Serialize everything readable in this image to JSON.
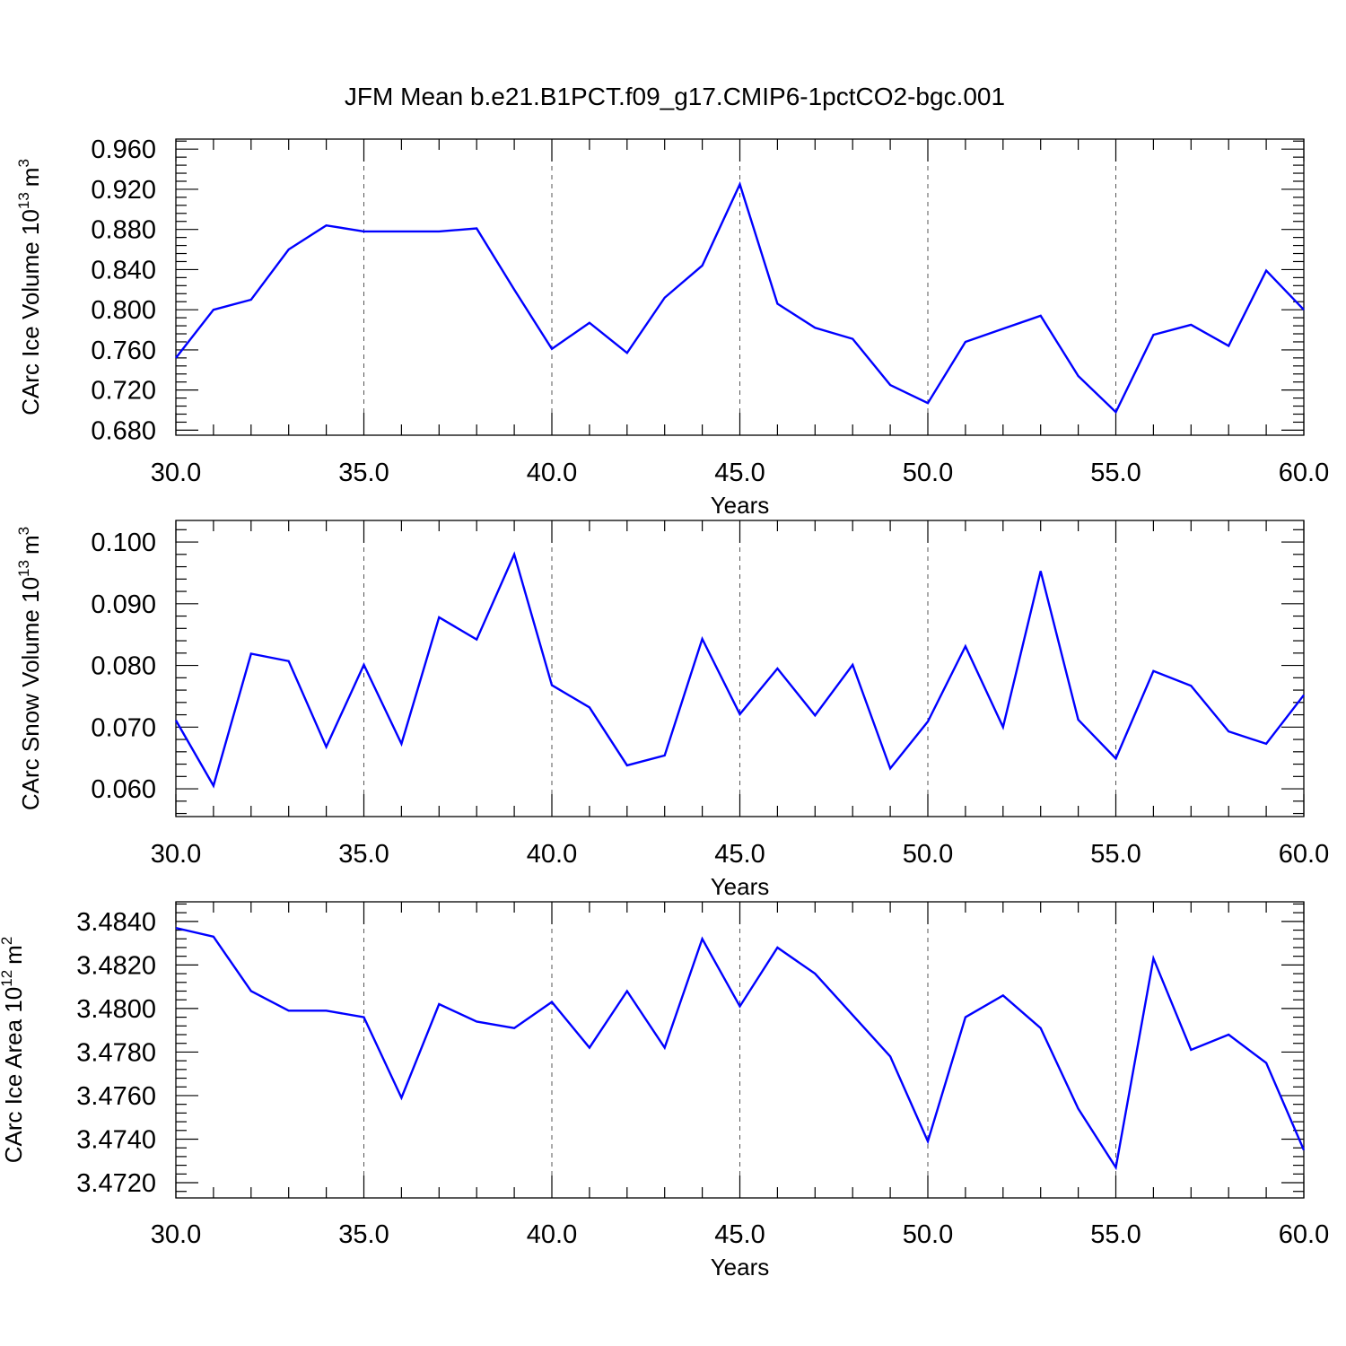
{
  "title": "JFM Mean b.e21.B1PCT.f09_g17.CMIP6-1pctCO2-bgc.001",
  "line_color": "#0000ff",
  "chart_data": [
    {
      "type": "line",
      "ylabel_main": "CArc Ice Volume 10",
      "ylabel_exp": "13",
      "ylabel_unit": "m",
      "ylabel_unit_exp": "3",
      "xlabel": "Years",
      "xlim": [
        30,
        60
      ],
      "ylim": [
        0.675,
        0.97
      ],
      "x_ticks": [
        30,
        35,
        40,
        45,
        50,
        55,
        60
      ],
      "x_tick_labels": [
        "30.0",
        "35.0",
        "40.0",
        "45.0",
        "50.0",
        "55.0",
        "60.0"
      ],
      "y_ticks": [
        0.68,
        0.72,
        0.76,
        0.8,
        0.84,
        0.88,
        0.92,
        0.96
      ],
      "y_tick_labels": [
        "0.680",
        "0.720",
        "0.760",
        "0.800",
        "0.840",
        "0.880",
        "0.920",
        "0.960"
      ],
      "y_minor_step": 0.008,
      "grid": "dashed vertical at major x ticks",
      "x": [
        30,
        31,
        32,
        33,
        34,
        35,
        36,
        37,
        38,
        39,
        40,
        41,
        42,
        43,
        44,
        45,
        46,
        47,
        48,
        49,
        50,
        51,
        52,
        53,
        54,
        55,
        56,
        57,
        58,
        59,
        60
      ],
      "values": [
        0.752,
        0.8,
        0.81,
        0.86,
        0.884,
        0.878,
        0.878,
        0.878,
        0.881,
        0.82,
        0.761,
        0.787,
        0.757,
        0.812,
        0.844,
        0.925,
        0.806,
        0.782,
        0.771,
        0.725,
        0.707,
        0.768,
        0.781,
        0.794,
        0.734,
        0.698,
        0.775,
        0.785,
        0.764,
        0.839,
        0.8
      ]
    },
    {
      "type": "line",
      "ylabel_main": "CArc Snow Volume 10",
      "ylabel_exp": "13",
      "ylabel_unit": "m",
      "ylabel_unit_exp": "3",
      "xlabel": "Years",
      "xlim": [
        30,
        60
      ],
      "ylim": [
        0.0555,
        0.1035
      ],
      "x_ticks": [
        30,
        35,
        40,
        45,
        50,
        55,
        60
      ],
      "x_tick_labels": [
        "30.0",
        "35.0",
        "40.0",
        "45.0",
        "50.0",
        "55.0",
        "60.0"
      ],
      "y_ticks": [
        0.06,
        0.07,
        0.08,
        0.09,
        0.1
      ],
      "y_tick_labels": [
        "0.060",
        "0.070",
        "0.080",
        "0.090",
        "0.100"
      ],
      "y_minor_step": 0.002,
      "grid": "dashed vertical at major x ticks",
      "x": [
        30,
        31,
        32,
        33,
        34,
        35,
        36,
        37,
        38,
        39,
        40,
        41,
        42,
        43,
        44,
        45,
        46,
        47,
        48,
        49,
        50,
        51,
        52,
        53,
        54,
        55,
        56,
        57,
        58,
        59,
        60
      ],
      "values": [
        0.0711,
        0.0605,
        0.0819,
        0.0807,
        0.0668,
        0.0801,
        0.0673,
        0.0878,
        0.0842,
        0.098,
        0.0768,
        0.0732,
        0.0638,
        0.0654,
        0.0843,
        0.0721,
        0.0795,
        0.0719,
        0.0801,
        0.0633,
        0.0709,
        0.0831,
        0.07,
        0.0953,
        0.0712,
        0.0649,
        0.0791,
        0.0767,
        0.0693,
        0.0673,
        0.0752
      ]
    },
    {
      "type": "line",
      "ylabel_main": "CArc Ice Area 10",
      "ylabel_exp": "12",
      "ylabel_unit": "m",
      "ylabel_unit_exp": "2",
      "xlabel": "Years",
      "xlim": [
        30,
        60
      ],
      "ylim": [
        3.4713,
        3.4849
      ],
      "x_ticks": [
        30,
        35,
        40,
        45,
        50,
        55,
        60
      ],
      "x_tick_labels": [
        "30.0",
        "35.0",
        "40.0",
        "45.0",
        "50.0",
        "55.0",
        "60.0"
      ],
      "y_ticks": [
        3.472,
        3.474,
        3.476,
        3.478,
        3.48,
        3.482,
        3.484
      ],
      "y_tick_labels": [
        "3.4720",
        "3.4740",
        "3.4760",
        "3.4780",
        "3.4800",
        "3.4820",
        "3.4840"
      ],
      "y_minor_step": 0.0004,
      "grid": "dashed vertical at major x ticks",
      "x": [
        30,
        31,
        32,
        33,
        34,
        35,
        36,
        37,
        38,
        39,
        40,
        41,
        42,
        43,
        44,
        45,
        46,
        47,
        48,
        49,
        50,
        51,
        52,
        53,
        54,
        55,
        56,
        57,
        58,
        59,
        60
      ],
      "values": [
        3.4837,
        3.4833,
        3.4808,
        3.4799,
        3.4799,
        3.4796,
        3.4759,
        3.4802,
        3.4794,
        3.4791,
        3.4803,
        3.4782,
        3.4808,
        3.4782,
        3.4832,
        3.4801,
        3.4828,
        3.4816,
        3.4797,
        3.4778,
        3.4739,
        3.4796,
        3.4806,
        3.4791,
        3.4754,
        3.4727,
        3.4823,
        3.4781,
        3.4788,
        3.4775,
        3.4735
      ]
    }
  ]
}
